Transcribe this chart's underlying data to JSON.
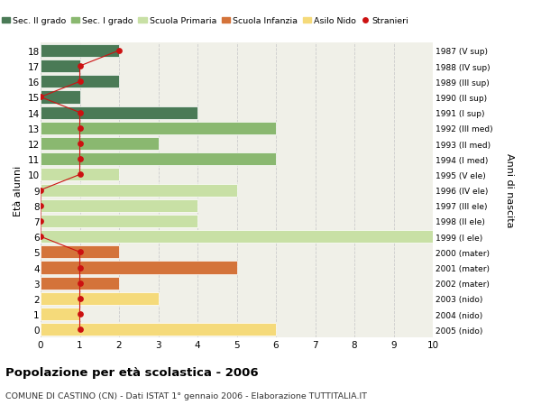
{
  "ages": [
    18,
    17,
    16,
    15,
    14,
    13,
    12,
    11,
    10,
    9,
    8,
    7,
    6,
    5,
    4,
    3,
    2,
    1,
    0
  ],
  "right_labels": [
    "1987 (V sup)",
    "1988 (IV sup)",
    "1989 (III sup)",
    "1990 (II sup)",
    "1991 (I sup)",
    "1992 (III med)",
    "1993 (II med)",
    "1994 (I med)",
    "1995 (V ele)",
    "1996 (IV ele)",
    "1997 (III ele)",
    "1998 (II ele)",
    "1999 (I ele)",
    "2000 (mater)",
    "2001 (mater)",
    "2002 (mater)",
    "2003 (nido)",
    "2004 (nido)",
    "2005 (nido)"
  ],
  "bar_values": [
    2,
    1,
    2,
    1,
    4,
    6,
    3,
    6,
    2,
    5,
    4,
    4,
    10,
    2,
    5,
    2,
    3,
    1,
    6
  ],
  "bar_colors": [
    "#4a7a56",
    "#4a7a56",
    "#4a7a56",
    "#4a7a56",
    "#4a7a56",
    "#8ab870",
    "#8ab870",
    "#8ab870",
    "#c8e0a5",
    "#c8e0a5",
    "#c8e0a5",
    "#c8e0a5",
    "#c8e0a5",
    "#d4733a",
    "#d4733a",
    "#d4733a",
    "#f5da7a",
    "#f5da7a",
    "#f5da7a"
  ],
  "stranieri_values": [
    2,
    1,
    1,
    0,
    1,
    1,
    1,
    1,
    1,
    0,
    0,
    0,
    0,
    1,
    1,
    1,
    1,
    1,
    1
  ],
  "stranieri_color": "#cc1111",
  "legend_labels": [
    "Sec. II grado",
    "Sec. I grado",
    "Scuola Primaria",
    "Scuola Infanzia",
    "Asilo Nido",
    "Stranieri"
  ],
  "legend_colors": [
    "#4a7a56",
    "#8ab870",
    "#c8e0a5",
    "#d4733a",
    "#f5da7a",
    "#cc1111"
  ],
  "ylabel": "Età alunni",
  "right_ylabel": "Anni di nascita",
  "title": "Popolazione per età scolastica - 2006",
  "subtitle": "COMUNE DI CASTINO (CN) - Dati ISTAT 1° gennaio 2006 - Elaborazione TUTTITALIA.IT",
  "xlim": [
    0,
    10
  ],
  "ylim": [
    -0.5,
    18.5
  ],
  "bg_color": "#ffffff",
  "plot_bg_color": "#f0f0e8",
  "grid_color": "#cccccc",
  "bar_height": 0.82
}
